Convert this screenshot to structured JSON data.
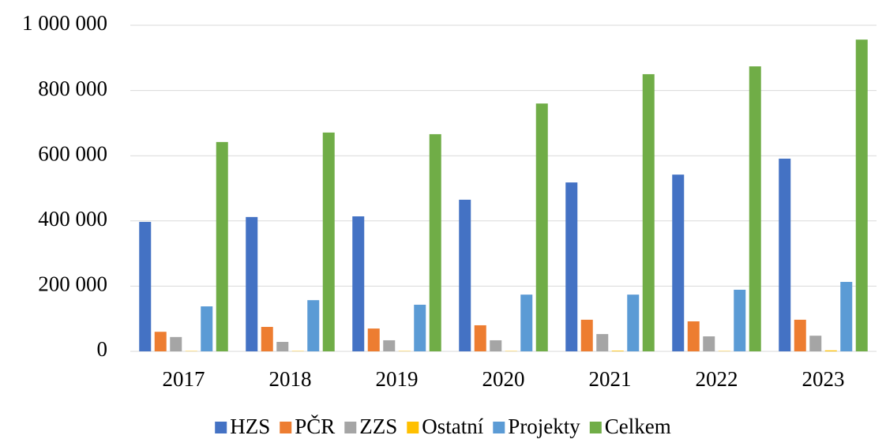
{
  "chart_data": {
    "type": "bar",
    "categories": [
      "2017",
      "2018",
      "2019",
      "2020",
      "2021",
      "2022",
      "2023"
    ],
    "series": [
      {
        "name": "HZS",
        "color": "#4472c4",
        "values": [
          397000,
          412000,
          414000,
          465000,
          518000,
          542000,
          591000
        ]
      },
      {
        "name": "PČR",
        "color": "#ed7d31",
        "values": [
          60000,
          75000,
          70000,
          80000,
          97000,
          92000,
          97000
        ]
      },
      {
        "name": "ZZS",
        "color": "#a5a5a5",
        "values": [
          44000,
          29000,
          34000,
          34000,
          53000,
          46000,
          48000
        ]
      },
      {
        "name": "Ostatní",
        "color": "#ffc000",
        "values": [
          1000,
          1000,
          1000,
          1000,
          2000,
          1000,
          3000
        ]
      },
      {
        "name": "Projekty",
        "color": "#5b9bd5",
        "values": [
          138000,
          157000,
          143000,
          174000,
          174000,
          189000,
          213000
        ]
      },
      {
        "name": "Celkem",
        "color": "#70ad47",
        "values": [
          642000,
          671000,
          666000,
          760000,
          850000,
          874000,
          956000
        ]
      }
    ],
    "ylim": [
      0,
      1000000
    ],
    "yticks": [
      0,
      {
        "value": 200000,
        "label": "200 000"
      },
      {
        "value": 400000,
        "label": "400 000"
      },
      {
        "value": 600000,
        "label": "600 000"
      },
      {
        "value": 800000,
        "label": "800 000"
      },
      {
        "value": 1000000,
        "label": "1 000 000"
      }
    ],
    "grid": true,
    "legend": "bottom"
  }
}
